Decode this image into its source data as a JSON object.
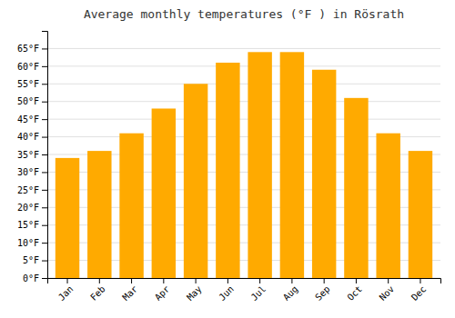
{
  "chart_data": {
    "type": "bar",
    "title": "Average monthly temperatures (°F ) in Rösrath",
    "categories": [
      "Jan",
      "Feb",
      "Mar",
      "Apr",
      "May",
      "Jun",
      "Jul",
      "Aug",
      "Sep",
      "Oct",
      "Nov",
      "Dec"
    ],
    "values": [
      34,
      36,
      41,
      48,
      55,
      61,
      64,
      64,
      59,
      51,
      41,
      36
    ],
    "color": "#FFAA00",
    "ylim": [
      0,
      70
    ],
    "yticks": [
      {
        "value": 0,
        "label": "0°F"
      },
      {
        "value": 5,
        "label": "5°F"
      },
      {
        "value": 10,
        "label": "10°F"
      },
      {
        "value": 15,
        "label": "15°F"
      },
      {
        "value": 20,
        "label": "20°F"
      },
      {
        "value": 25,
        "label": "25°F"
      },
      {
        "value": 30,
        "label": "30°F"
      },
      {
        "value": 35,
        "label": "35°F"
      },
      {
        "value": 40,
        "label": "40°F"
      },
      {
        "value": 45,
        "label": "45°F"
      },
      {
        "value": 50,
        "label": "50°F"
      },
      {
        "value": 55,
        "label": "55°F"
      },
      {
        "value": 60,
        "label": "60°F"
      },
      {
        "value": 65,
        "label": "65°F"
      }
    ],
    "grid": true
  }
}
